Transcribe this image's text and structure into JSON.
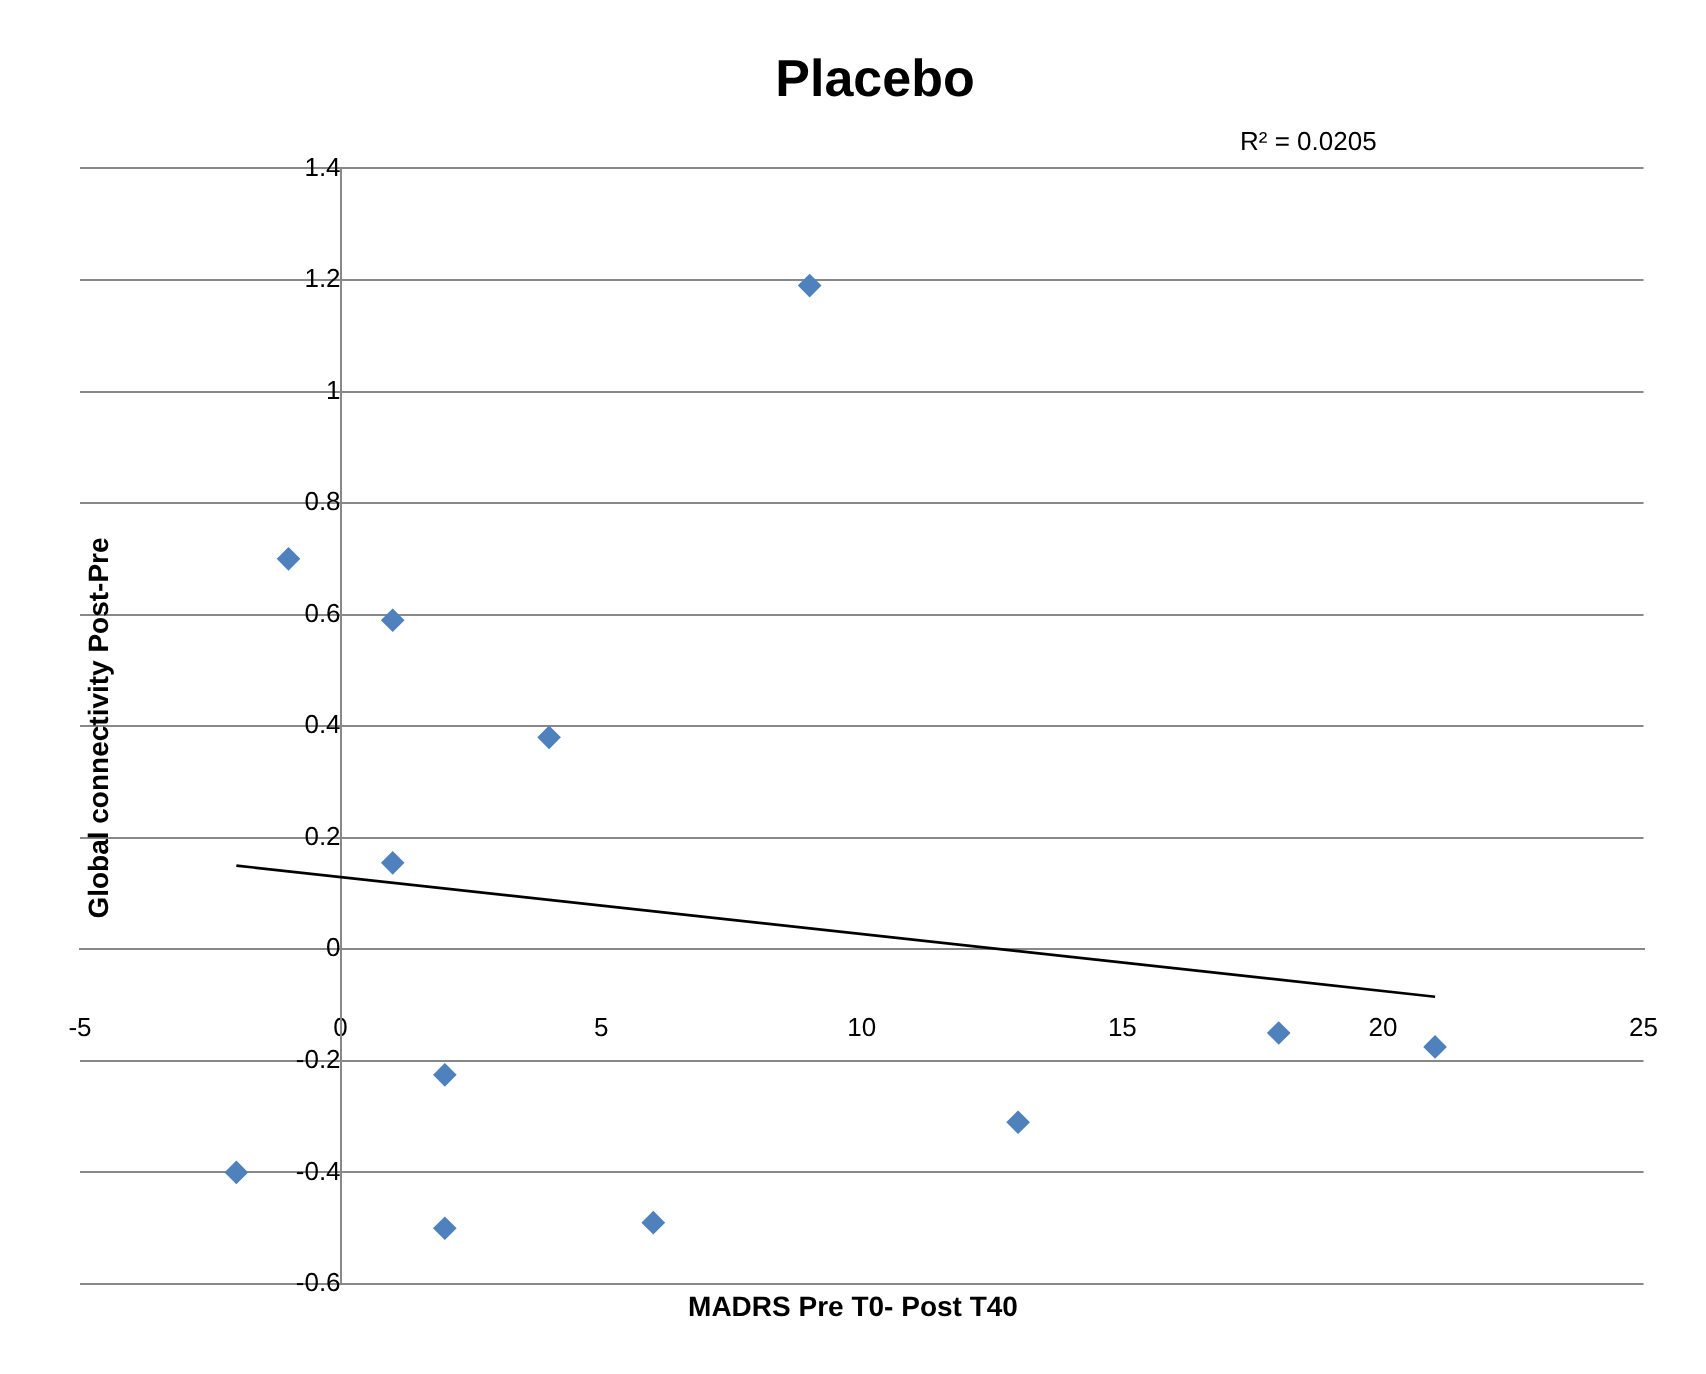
{
  "chart_data": {
    "type": "scatter",
    "title": "Placebo",
    "xlabel": "MADRS  Pre T0- Post T40",
    "ylabel": "Global connectivity Post-Pre",
    "annotations": [
      "R² = 0.0205"
    ],
    "x": [
      -2,
      -1,
      1,
      1,
      2,
      2,
      4,
      6,
      9,
      13,
      18,
      21
    ],
    "series": [
      {
        "color": "#4f81bd",
        "marker": "diamond",
        "values": [
          -0.4,
          0.7,
          0.59,
          0.155,
          -0.225,
          -0.5,
          0.38,
          -0.49,
          1.19,
          -0.31,
          -0.15,
          -0.175
        ]
      },
      {
        "type": "line",
        "color": "#000000",
        "marker": "none",
        "x": [
          -2,
          21
        ],
        "values": [
          0.15,
          -0.085
        ]
      }
    ],
    "xlim": [
      -5,
      25
    ],
    "xticks": [
      -5,
      0,
      5,
      10,
      15,
      20,
      25
    ],
    "ylim": [
      -0.6,
      1.4
    ],
    "yticks": [
      -0.6,
      -0.4,
      -0.2,
      0,
      0.2,
      0.4,
      0.6,
      0.8,
      1,
      1.2,
      1.4
    ],
    "grid": "y",
    "legend": false
  }
}
